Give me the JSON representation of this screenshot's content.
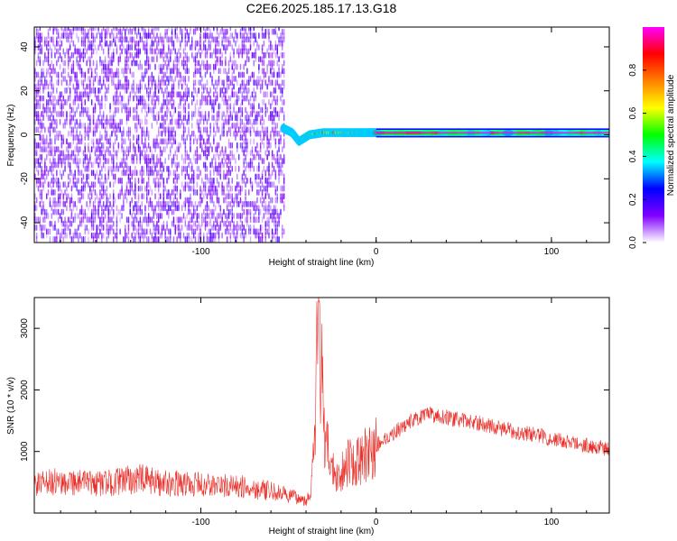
{
  "title": "C2E6.2025.185.17.13.G18",
  "chart_data": [
    {
      "type": "heatmap",
      "xlabel": "Height of straight line (km)",
      "ylabel": "Frequency (Hz)",
      "xlim": [
        -195,
        133
      ],
      "ylim": [
        -49,
        49
      ],
      "xticks": [
        -100,
        0,
        100
      ],
      "yticks": [
        -40,
        -20,
        0,
        20,
        40
      ],
      "colorbar": {
        "label": "Normalized spectral amplitude",
        "range": [
          0,
          1
        ],
        "ticks": [
          0.0,
          0.2,
          0.4,
          0.6,
          0.8
        ],
        "tick_labels": [
          "0.0",
          "0.2",
          "0.4",
          "0.6",
          "0.8"
        ],
        "colors": [
          "#ffffff",
          "#8000ff",
          "#0000ff",
          "#00ffff",
          "#00ff00",
          "#ffff00",
          "#ff8000",
          "#ff0000",
          "#ff00ff"
        ]
      },
      "regions": [
        {
          "x_range": [
            -195,
            -52
          ],
          "freq_range": [
            -49,
            49
          ],
          "amplitude_range": [
            0.0,
            0.2
          ],
          "pattern": "noise"
        },
        {
          "x_range": [
            -55,
            0
          ],
          "freq_track": [
            [
              -53,
              3
            ],
            [
              -48,
              1
            ],
            [
              -44,
              -3
            ],
            [
              -38,
              0
            ],
            [
              -30,
              1
            ],
            [
              -20,
              1
            ],
            [
              -12,
              1
            ],
            [
              -5,
              1
            ],
            [
              0,
              1
            ]
          ],
          "amplitude_range": [
            0.3,
            0.9
          ],
          "pattern": "tone"
        },
        {
          "x_range": [
            0,
            133
          ],
          "freq_range": [
            0.2,
            1.5
          ],
          "amplitude_range": [
            0.7,
            1.0
          ],
          "pattern": "tone"
        }
      ]
    },
    {
      "type": "line",
      "xlabel": "Height of straight line (km)",
      "ylabel": "SNR (10 * v/v)",
      "xlim": [
        -195,
        133
      ],
      "ylim": [
        0,
        3500
      ],
      "xticks": [
        -100,
        0,
        100
      ],
      "yticks": [
        1000,
        2000,
        3000
      ],
      "color": "#e8302a",
      "series": [
        {
          "x": [
            -195,
            -185,
            -175,
            -165,
            -155,
            -145,
            -135,
            -125,
            -115,
            -105,
            -95,
            -85,
            -75,
            -65,
            -55,
            -45,
            -40,
            -37,
            -35,
            -33,
            -31,
            -29,
            -27,
            -25,
            -22,
            -20,
            -17,
            -15,
            -12,
            -10,
            -7,
            -5,
            -2,
            0,
            5,
            10,
            15,
            20,
            25,
            30,
            35,
            40,
            45,
            50,
            55,
            60,
            65,
            70,
            75,
            80,
            85,
            90,
            95,
            100,
            105,
            110,
            115,
            120,
            125,
            130,
            133
          ],
          "y": [
            450,
            500,
            520,
            480,
            480,
            520,
            560,
            500,
            480,
            470,
            450,
            440,
            420,
            380,
            320,
            250,
            200,
            400,
            1200,
            3200,
            2200,
            900,
            1100,
            700,
            600,
            650,
            800,
            900,
            750,
            850,
            900,
            1000,
            950,
            1100,
            1200,
            1300,
            1400,
            1500,
            1550,
            1600,
            1580,
            1560,
            1520,
            1500,
            1480,
            1450,
            1420,
            1380,
            1350,
            1320,
            1300,
            1280,
            1250,
            1200,
            1180,
            1150,
            1120,
            1100,
            1080,
            1050,
            1050
          ]
        }
      ]
    }
  ]
}
